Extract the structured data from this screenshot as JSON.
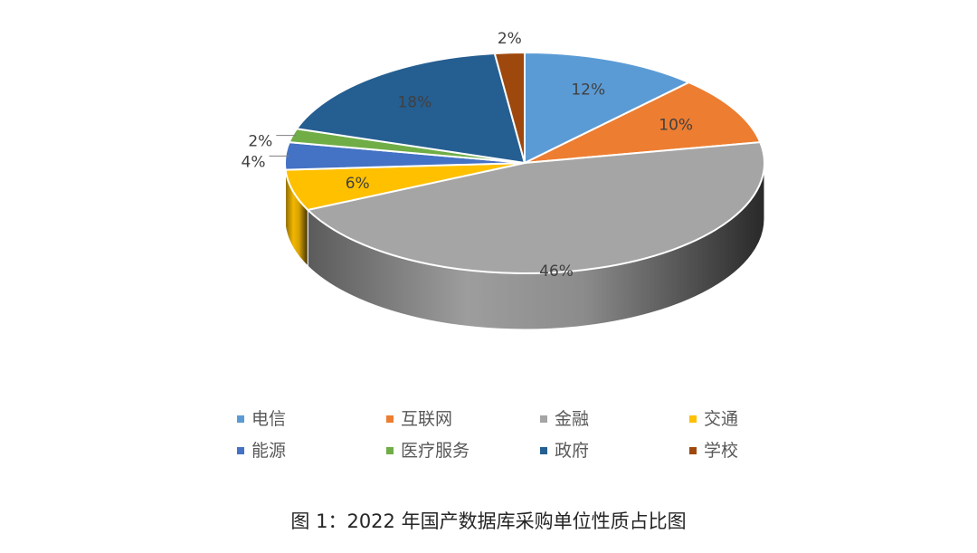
{
  "caption": "图 1：2022 年国产数据库采购单位性质占比图",
  "chart_data": {
    "type": "pie",
    "title": "",
    "slices": [
      {
        "name": "电信",
        "value": 12,
        "label": "12%",
        "color": "#5b9bd5"
      },
      {
        "name": "互联网",
        "value": 10,
        "label": "10%",
        "color": "#ed7d31"
      },
      {
        "name": "金融",
        "value": 46,
        "label": "46%",
        "color": "#a5a5a5"
      },
      {
        "name": "交通",
        "value": 6,
        "label": "6%",
        "color": "#ffc000"
      },
      {
        "name": "能源",
        "value": 4,
        "label": "4%",
        "color": "#4472c4"
      },
      {
        "name": "医疗服务",
        "value": 2,
        "label": "2%",
        "color": "#70ad47"
      },
      {
        "name": "政府",
        "value": 18,
        "label": "18%",
        "color": "#255e91"
      },
      {
        "name": "学校",
        "value": 2,
        "label": "2%",
        "color": "#9e480e"
      }
    ],
    "legend_position": "bottom",
    "three_d": true
  }
}
